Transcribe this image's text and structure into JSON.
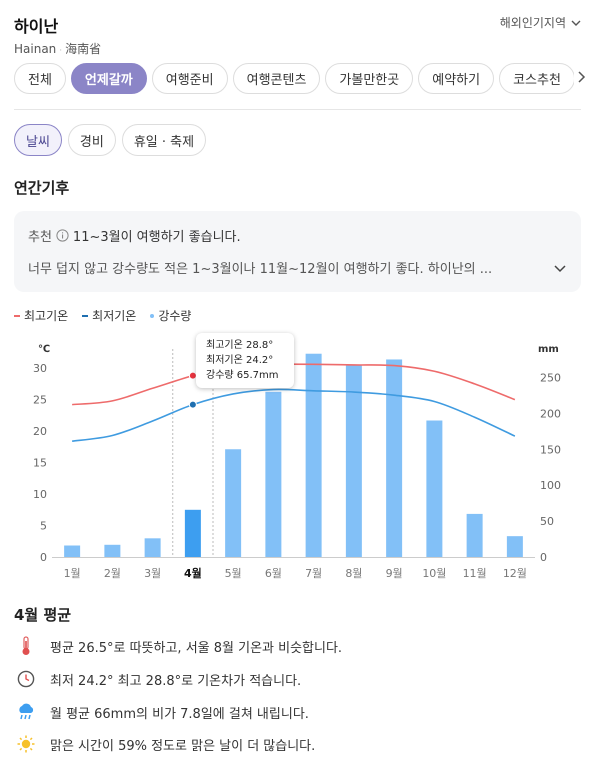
{
  "header": {
    "title": "하이난",
    "subtitle_en": "Hainan",
    "subtitle_cn": "海南省",
    "region_label": "해외인기지역"
  },
  "tabs": [
    {
      "label": "전체",
      "active": false
    },
    {
      "label": "언제갈까",
      "active": true
    },
    {
      "label": "여행준비",
      "active": false
    },
    {
      "label": "여행콘텐츠",
      "active": false
    },
    {
      "label": "가볼만한곳",
      "active": false
    },
    {
      "label": "예약하기",
      "active": false
    },
    {
      "label": "코스추천",
      "active": false
    }
  ],
  "subtabs": [
    {
      "label": "날씨",
      "active": true
    },
    {
      "label": "경비",
      "active": false
    },
    {
      "label": "휴일 · 축제",
      "active": false
    }
  ],
  "section_title": "연간기후",
  "recommendation": {
    "label": "추천",
    "headline": "11~3월이 여행하기 좋습니다.",
    "detail": "너무 덥지 않고 강수량도 적은 1~3월이나 11월~12월이 여행하기 좋다. 하이난의 ..."
  },
  "legend": {
    "high_label": "최고기온",
    "low_label": "최저기온",
    "rain_label": "강수량"
  },
  "colors": {
    "accent": "#8b85c7",
    "high": "#ee6b6b",
    "low": "#3f9be0",
    "rain": "#82c0f7",
    "rain_selected": "#3d9ef0"
  },
  "chart_data": {
    "type": "bar",
    "categories": [
      "1월",
      "2월",
      "3월",
      "4월",
      "5월",
      "6월",
      "7월",
      "8월",
      "9월",
      "10월",
      "11월",
      "12월"
    ],
    "selected_index": 3,
    "y_left_unit": "℃",
    "y_right_unit": "mm",
    "y_left_ticks": [
      0,
      5,
      10,
      15,
      20,
      25,
      30
    ],
    "y_right_ticks": [
      0,
      50,
      100,
      150,
      200,
      250
    ],
    "ylim_left": [
      0,
      32.4
    ],
    "ylim_right": [
      0,
      284
    ],
    "series": [
      {
        "name": "강수량",
        "type": "bar",
        "values": [
          16,
          17,
          26,
          65.7,
          150,
          230,
          283,
          267,
          275,
          190,
          60,
          29
        ]
      },
      {
        "name": "최고기온",
        "type": "line",
        "values": [
          24.2,
          24.8,
          26.8,
          28.8,
          30.4,
          30.6,
          30.6,
          30.5,
          30.4,
          29.5,
          27.5,
          25.0
        ]
      },
      {
        "name": "최저기온",
        "type": "line",
        "values": [
          18.4,
          19.3,
          21.6,
          24.2,
          25.9,
          26.6,
          26.4,
          26.2,
          25.7,
          24.7,
          22.2,
          19.2
        ]
      }
    ]
  },
  "tooltip": {
    "high": "최고기온 28.8°",
    "low": "최저기온 24.2°",
    "rain": "강수량 65.7mm"
  },
  "avg": {
    "title": "4월 평균",
    "rows": [
      {
        "icon": "thermometer-icon",
        "text": "평균 26.5°로 따뜻하고, 서울 8월 기온과 비슷합니다."
      },
      {
        "icon": "clock-icon",
        "text": "최저 24.2° 최고 28.8°로 기온차가 적습니다."
      },
      {
        "icon": "rain-cloud-icon",
        "text": "월 평균 66mm의 비가 7.8일에 걸쳐 내립니다."
      },
      {
        "icon": "sun-icon",
        "text": "맑은 시간이 59% 정도로 맑은 날이 더 많습니다."
      }
    ]
  }
}
